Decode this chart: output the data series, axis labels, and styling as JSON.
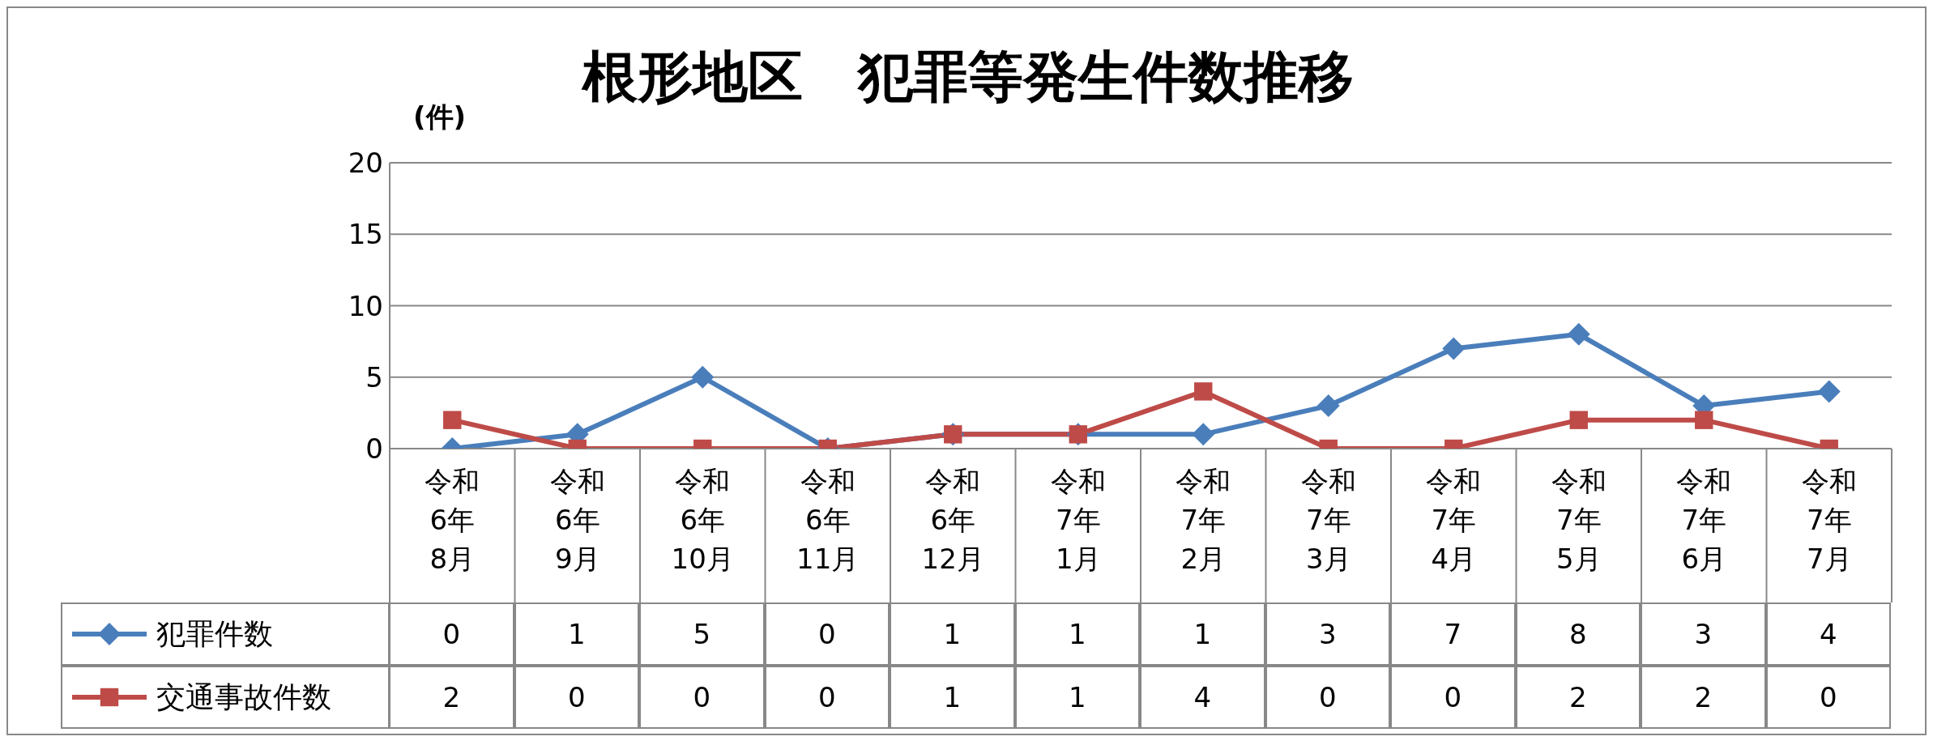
{
  "chart_data": {
    "type": "line",
    "title": "根形地区　犯罪等発生件数推移",
    "ylabel": "(件)",
    "categories": [
      "令和\n6年\n8月",
      "令和\n6年\n9月",
      "令和\n6年\n10月",
      "令和\n6年\n11月",
      "令和\n6年\n12月",
      "令和\n7年\n1月",
      "令和\n7年\n2月",
      "令和\n7年\n3月",
      "令和\n7年\n4月",
      "令和\n7年\n5月",
      "令和\n7年\n6月",
      "令和\n7年\n7月"
    ],
    "series": [
      {
        "name": "犯罪件数",
        "color": "#4a7ebb",
        "marker": "diamond",
        "values": [
          0,
          1,
          5,
          0,
          1,
          1,
          1,
          3,
          7,
          8,
          3,
          4
        ]
      },
      {
        "name": "交通事故件数",
        "color": "#be4b48",
        "marker": "square",
        "values": [
          2,
          0,
          0,
          0,
          1,
          1,
          4,
          0,
          0,
          2,
          2,
          0
        ]
      }
    ],
    "ylim": [
      0,
      20
    ],
    "yticks": [
      0,
      5,
      10,
      15,
      20
    ],
    "grid": "y",
    "legend": "bottom left",
    "data_labels": true
  }
}
